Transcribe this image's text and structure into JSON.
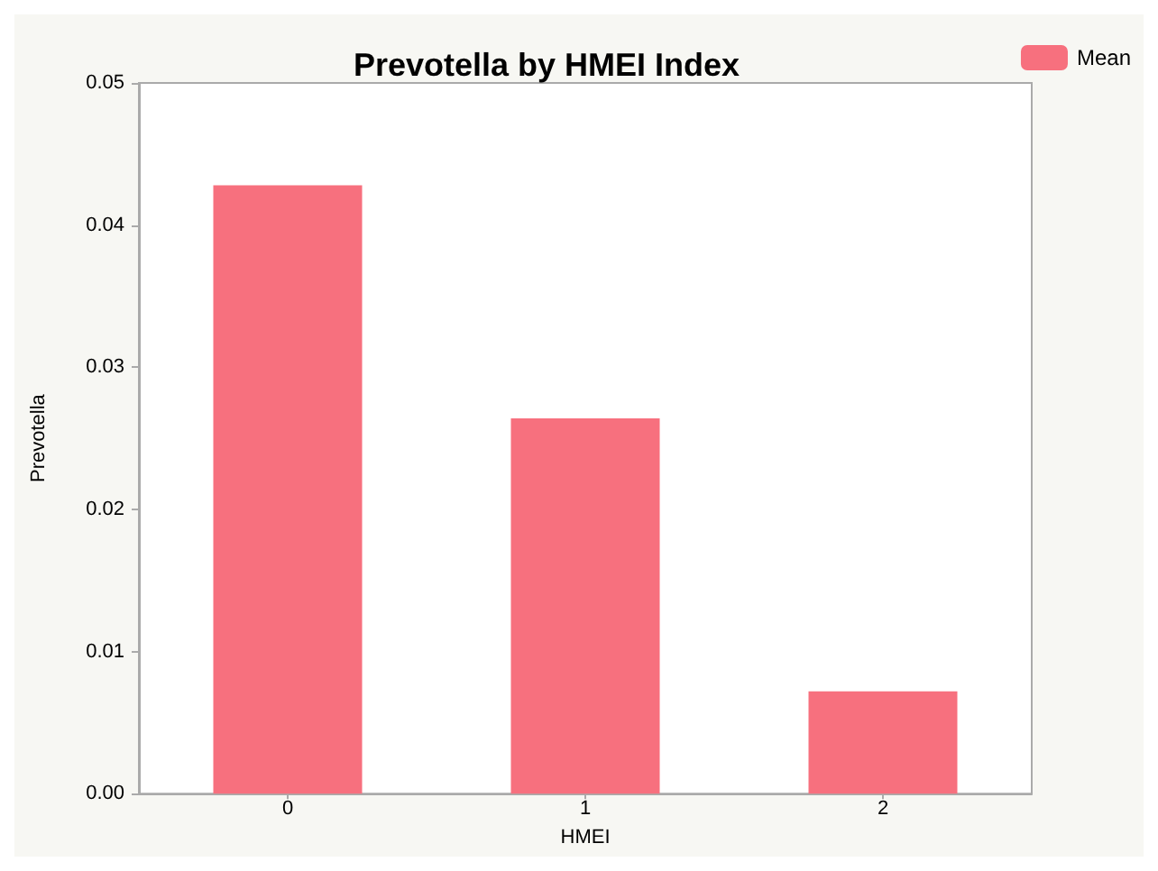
{
  "chart_data": {
    "type": "bar",
    "title": "Prevotella by HMEI Index",
    "xlabel": "HMEI",
    "ylabel": "Prevotella",
    "categories": [
      "0",
      "1",
      "2"
    ],
    "series": [
      {
        "name": "Mean",
        "color": "#f7707e",
        "values": [
          0.0428,
          0.0264,
          0.0072
        ]
      }
    ],
    "ylim": [
      0,
      0.05
    ],
    "yticks": [
      {
        "value": 0,
        "label": "0.00"
      },
      {
        "value": 0.01,
        "label": "0.01"
      },
      {
        "value": 0.02,
        "label": "0.02"
      },
      {
        "value": 0.03,
        "label": "0.03"
      },
      {
        "value": 0.04,
        "label": "0.04"
      },
      {
        "value": 0.05,
        "label": "0.05"
      }
    ],
    "grid": false,
    "legend": "top right"
  }
}
